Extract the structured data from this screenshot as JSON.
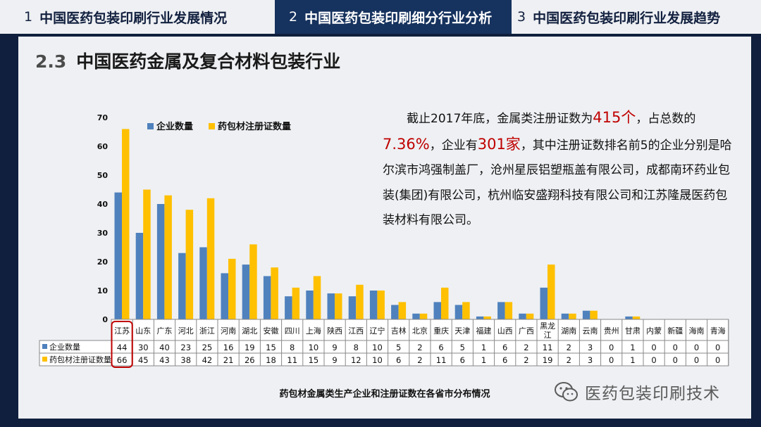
{
  "nav": {
    "tabs": [
      {
        "num": "1",
        "label": "中国医药包装印刷行业发展情况"
      },
      {
        "num": "2",
        "label": "中国医药包装印刷细分行业分析"
      },
      {
        "num": "3",
        "label": "中国医药包装印刷行业发展趋势"
      }
    ]
  },
  "header": {
    "section": "2.3",
    "title": "中国医药金属及复合材料包装行业"
  },
  "description": {
    "p1": "截止2017年底，金属类注册证数为",
    "hl1": "415个",
    "p2": "，占总数的",
    "hl2": "7.36%",
    "p3": "，企业有",
    "hl3": "301家",
    "p4": "，其中注册证数排名前5的企业分别是哈尔滨市鸿强制盖厂，沧州星辰铝塑瓶盖有限公司，成都南环药业包装(集团)有限公司，杭州临安盛翔科技有限公司和江苏隆晟医药包装材料有限公司。"
  },
  "caption": "药包材金属类生产企业和注册证数在各省市分布情况",
  "watermark": {
    "text": "医药包装印刷技术",
    "icon": "wechat-icon"
  },
  "colors": {
    "series1": "#4f81bd",
    "series2": "#ffc000",
    "highlight": "#c00000"
  },
  "chart_data": {
    "type": "bar",
    "categories": [
      "江苏",
      "山东",
      "广东",
      "河北",
      "浙江",
      "河南",
      "湖北",
      "安徽",
      "四川",
      "上海",
      "陕西",
      "江西",
      "辽宁",
      "吉林",
      "北京",
      "重庆",
      "天津",
      "福建",
      "山西",
      "广西",
      "黑龙江",
      "湖南",
      "云南",
      "贵州",
      "甘肃",
      "内蒙",
      "新疆",
      "海南",
      "青海"
    ],
    "series": [
      {
        "name": "企业数量",
        "values": [
          44,
          30,
          40,
          23,
          25,
          16,
          19,
          15,
          8,
          10,
          9,
          8,
          10,
          5,
          2,
          6,
          5,
          1,
          6,
          2,
          11,
          2,
          3,
          0,
          1,
          0,
          0,
          0,
          0
        ]
      },
      {
        "name": "药包材注册证数量",
        "values": [
          66,
          45,
          43,
          38,
          42,
          21,
          26,
          18,
          11,
          15,
          9,
          12,
          10,
          6,
          2,
          11,
          6,
          1,
          6,
          2,
          19,
          2,
          3,
          0,
          1,
          0,
          0,
          0,
          0
        ]
      }
    ],
    "ylim": [
      0,
      70
    ],
    "yticks": [
      0,
      10,
      20,
      30,
      40,
      50,
      60,
      70
    ],
    "legend": "top",
    "grid": false,
    "highlighted_category": "江苏"
  }
}
